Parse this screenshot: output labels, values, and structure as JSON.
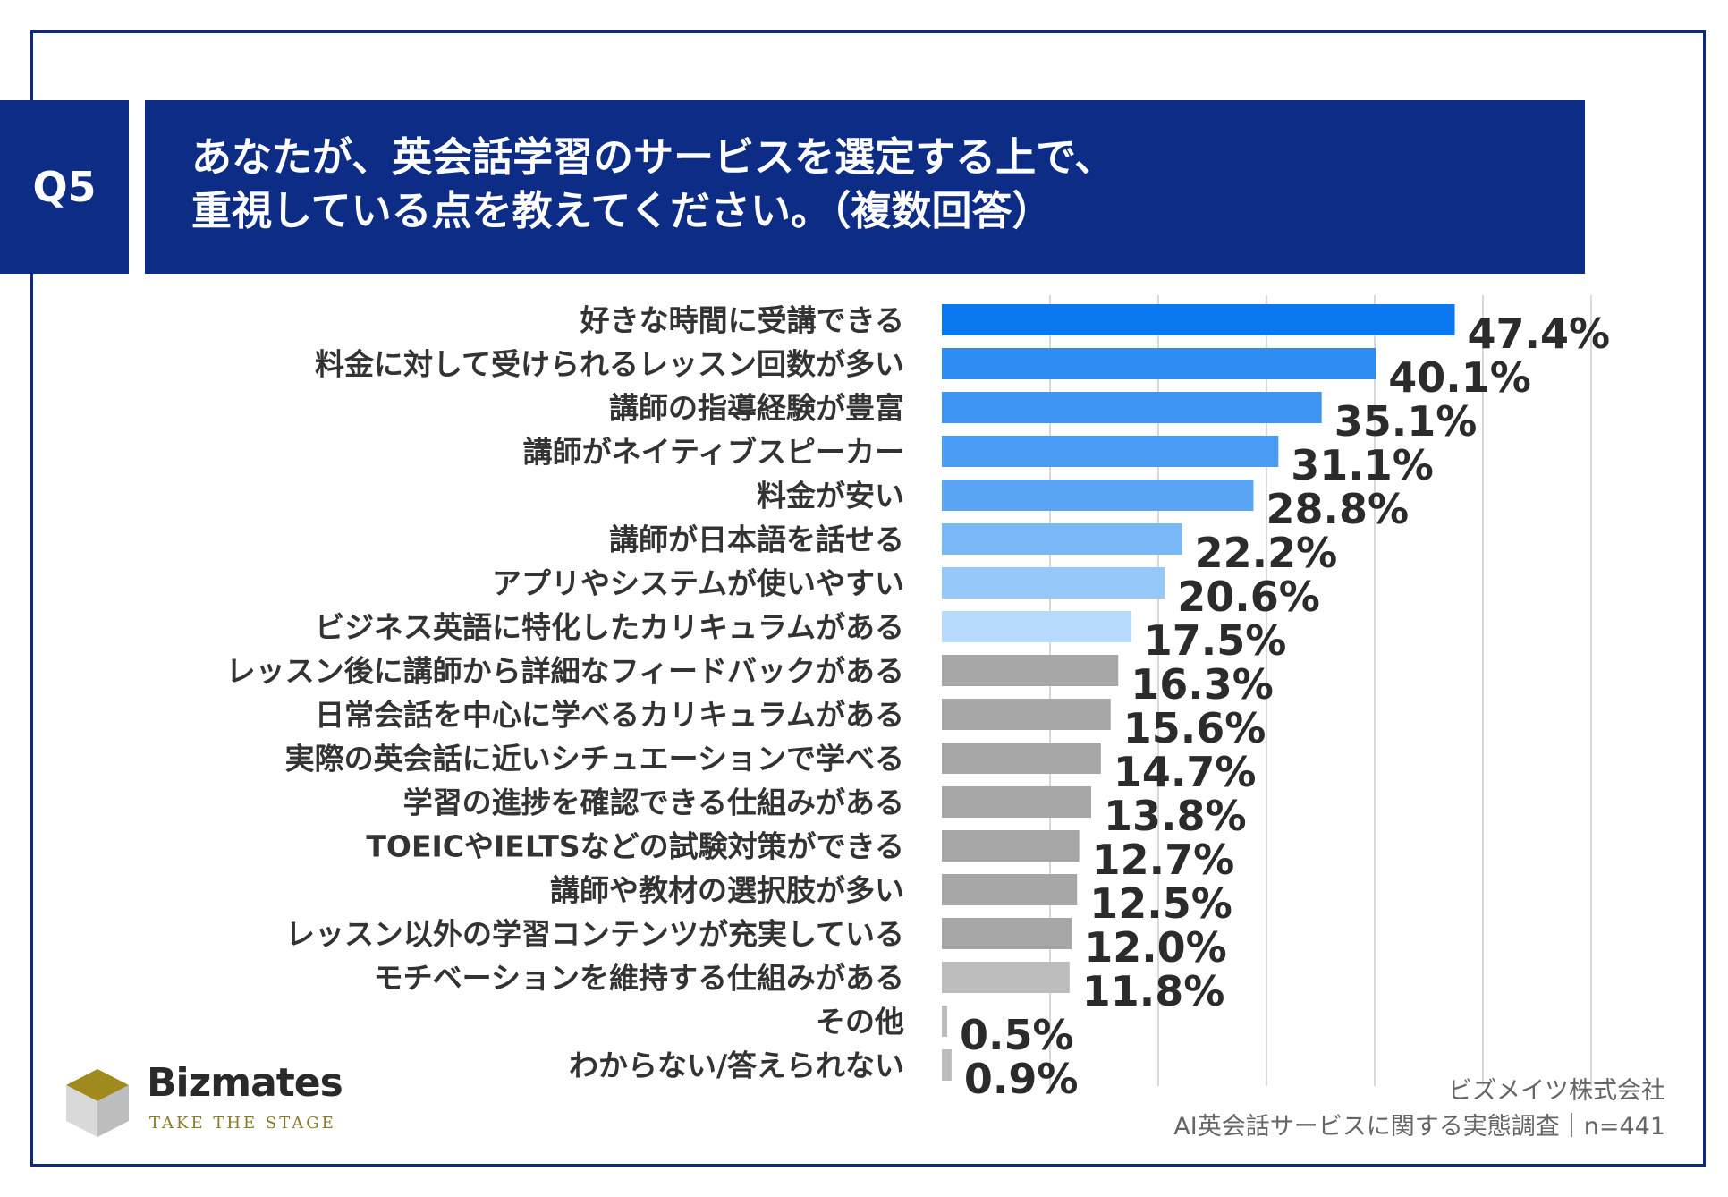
{
  "header": {
    "question_badge": "Q5",
    "title_line1": "あなたが、英会話学習のサービスを選定する上で、",
    "title_line2": "重視している点を教えてください。（複数回答）"
  },
  "chart_data": {
    "type": "bar",
    "orientation": "horizontal",
    "xlim": [
      0,
      60
    ],
    "grid": true,
    "categories": [
      "好きな時間に受講できる",
      "料金に対して受けられるレッスン回数が多い",
      "講師の指導経験が豊富",
      "講師がネイティブスピーカー",
      "料金が安い",
      "講師が日本語を話せる",
      "アプリやシステムが使いやすい",
      "ビジネス英語に特化したカリキュラムがある",
      "レッスン後に講師から詳細なフィードバックがある",
      "日常会話を中心に学べるカリキュラムがある",
      "実際の英会話に近いシチュエーションで学べる",
      "学習の進捗を確認できる仕組みがある",
      "TOEICやIELTSなどの試験対策ができる",
      "講師や教材の選択肢が多い",
      "レッスン以外の学習コンテンツが充実している",
      "モチベーションを維持する仕組みがある",
      "その他",
      "わからない/答えられない"
    ],
    "values": [
      47.4,
      40.1,
      35.1,
      31.1,
      28.8,
      22.2,
      20.6,
      17.5,
      16.3,
      15.6,
      14.7,
      13.8,
      12.7,
      12.5,
      12.0,
      11.8,
      0.5,
      0.9
    ],
    "labels": [
      "47.4%",
      "40.1%",
      "35.1%",
      "31.1%",
      "28.8%",
      "22.2%",
      "20.6%",
      "17.5%",
      "16.3%",
      "15.6%",
      "14.7%",
      "13.8%",
      "12.7%",
      "12.5%",
      "12.0%",
      "11.8%",
      "0.5%",
      "0.9%"
    ],
    "colors": [
      "#0a78f0",
      "#2e8cf2",
      "#3f95f3",
      "#4a9cf4",
      "#5aa6f5",
      "#7ab8f8",
      "#96c8fa",
      "#b8daff",
      "#a6a6a6",
      "#a6a6a6",
      "#a6a6a6",
      "#a6a6a6",
      "#a6a6a6",
      "#a6a6a6",
      "#a6a6a6",
      "#bcbcbc",
      "#bcbcbc",
      "#bcbcbc"
    ],
    "colors_text": {
      "category": "#333333",
      "value": "#2b2b2b",
      "grid": "#d9d9d9"
    }
  },
  "logo": {
    "name": "Bizmates",
    "tagline": "TAKE THE STAGE"
  },
  "source": {
    "company": "ビズメイツ株式会社",
    "survey": "AI英会話サービスに関する実態調査｜n=441"
  }
}
